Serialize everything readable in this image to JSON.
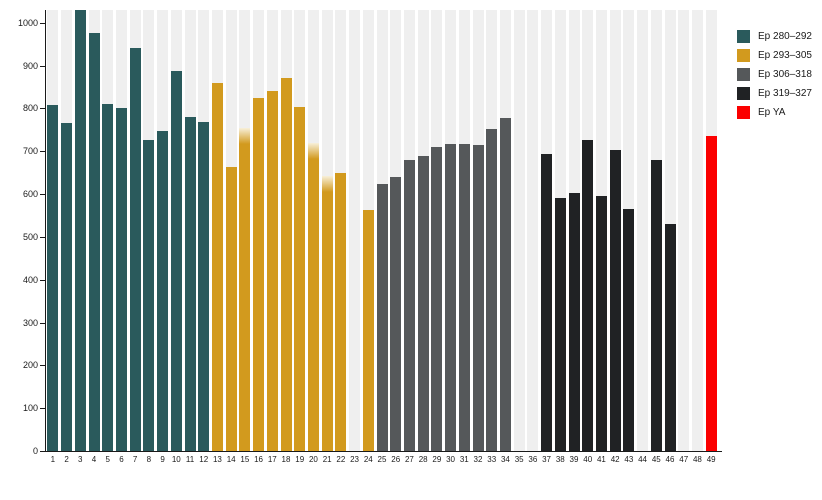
{
  "chart_data": {
    "type": "bar",
    "title": "",
    "xlabel": "",
    "ylabel": "",
    "ylim": [
      0,
      1030
    ],
    "yticks": [
      0,
      100,
      200,
      300,
      400,
      500,
      600,
      700,
      800,
      900,
      1000
    ],
    "x": [
      1,
      2,
      3,
      4,
      5,
      6,
      7,
      8,
      9,
      10,
      11,
      12,
      13,
      14,
      15,
      16,
      17,
      18,
      19,
      20,
      21,
      22,
      23,
      24,
      25,
      26,
      27,
      28,
      29,
      30,
      31,
      32,
      33,
      34,
      35,
      36,
      37,
      38,
      39,
      40,
      41,
      42,
      43,
      44,
      45,
      46,
      47,
      48,
      49
    ],
    "values": [
      808,
      765,
      1030,
      977,
      810,
      801,
      942,
      727,
      747,
      888,
      780,
      769,
      859,
      664,
      755,
      824,
      841,
      872,
      804,
      720,
      643,
      649,
      null,
      563,
      624,
      639,
      680,
      689,
      709,
      717,
      717,
      715,
      752,
      777,
      null,
      null,
      693,
      590,
      602,
      727,
      596,
      702,
      565,
      null,
      680,
      530,
      null,
      null,
      736
    ],
    "group_index": [
      0,
      0,
      0,
      0,
      0,
      0,
      0,
      0,
      0,
      0,
      0,
      0,
      1,
      1,
      1,
      1,
      1,
      1,
      1,
      1,
      1,
      1,
      1,
      1,
      2,
      2,
      2,
      2,
      2,
      2,
      2,
      2,
      2,
      2,
      2,
      2,
      3,
      3,
      3,
      3,
      3,
      3,
      3,
      3,
      3,
      3,
      3,
      3,
      4
    ],
    "series": [
      {
        "name": "Ep 280–292",
        "color": "#2a5a5c"
      },
      {
        "name": "Ep 293–305",
        "color": "#d29a1e"
      },
      {
        "name": "Ep 306–318",
        "color": "#55585a"
      },
      {
        "name": "Ep 319–327",
        "color": "#202224"
      },
      {
        "name": "Ep YA",
        "color": "#fb0000"
      }
    ],
    "faded_bar_x": [
      15,
      20,
      21
    ],
    "fade_top_color": "#f7f0da",
    "slot_background_color": "#efefef",
    "axis_color": "#1a1a1a",
    "grid": false,
    "legend_position": "right"
  }
}
